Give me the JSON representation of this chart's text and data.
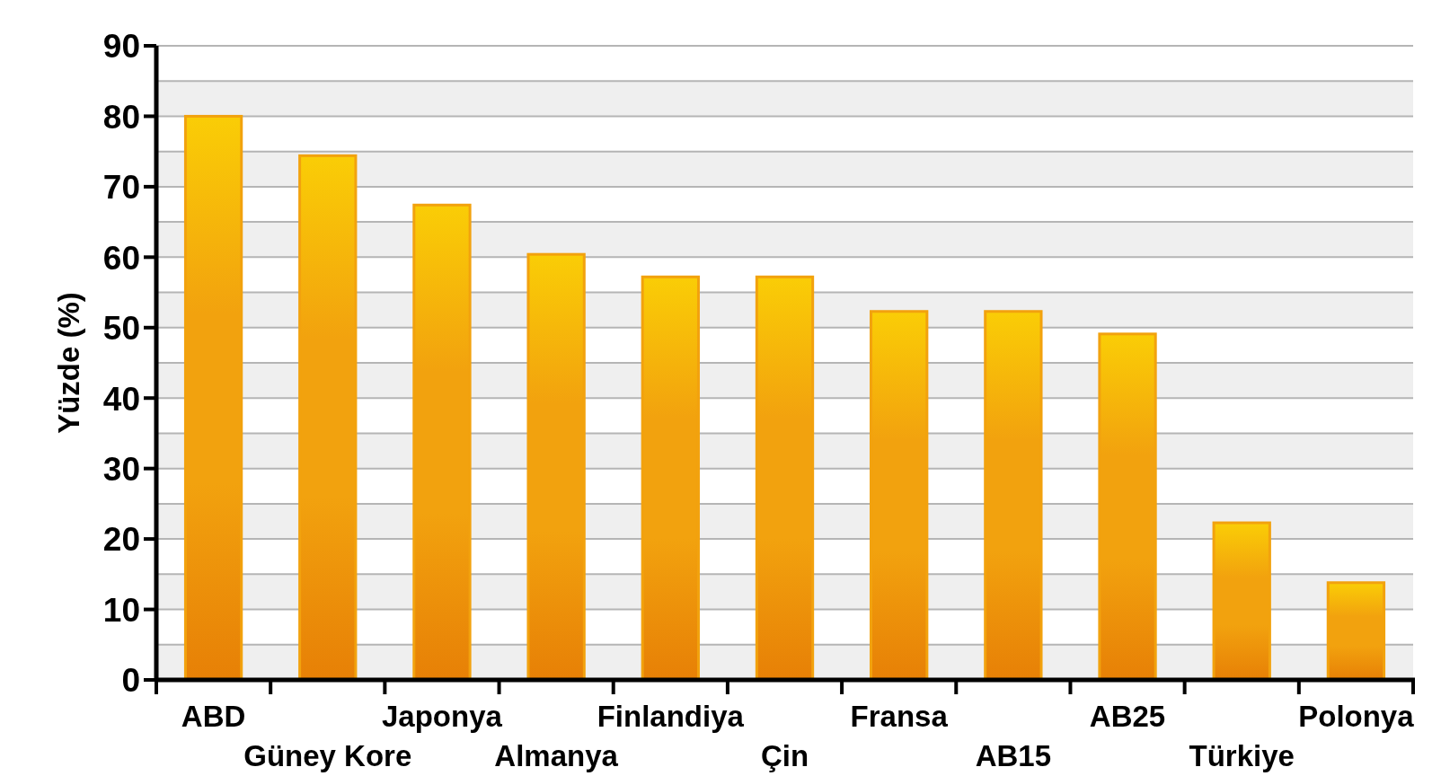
{
  "chart_data": {
    "type": "bar",
    "ylabel": "Yüzde (%)",
    "categories": [
      "ABD",
      "Güney Kore",
      "Japonya",
      "Almanya",
      "Finlandiya",
      "Çin",
      "Fransa",
      "AB15",
      "AB25",
      "Türkiye",
      "Polonya"
    ],
    "values": [
      80,
      74.4,
      67.4,
      60.4,
      57.2,
      57.2,
      52.3,
      52.3,
      49.1,
      22.3,
      13.8
    ],
    "color": "#f2a20e",
    "ylim": [
      0,
      90
    ],
    "yticks": [
      0,
      {
        "value": 5,
        "label": null
      },
      10,
      {
        "value": 15,
        "label": null
      },
      20,
      {
        "value": 25,
        "label": null
      },
      30,
      {
        "value": 35,
        "label": null
      },
      40,
      {
        "value": 45,
        "label": null
      },
      50,
      {
        "value": 55,
        "label": null
      },
      60,
      {
        "value": 65,
        "label": null
      },
      70,
      {
        "value": 75,
        "label": null
      },
      80,
      {
        "value": 85,
        "label": null
      },
      90
    ],
    "grid": true
  }
}
